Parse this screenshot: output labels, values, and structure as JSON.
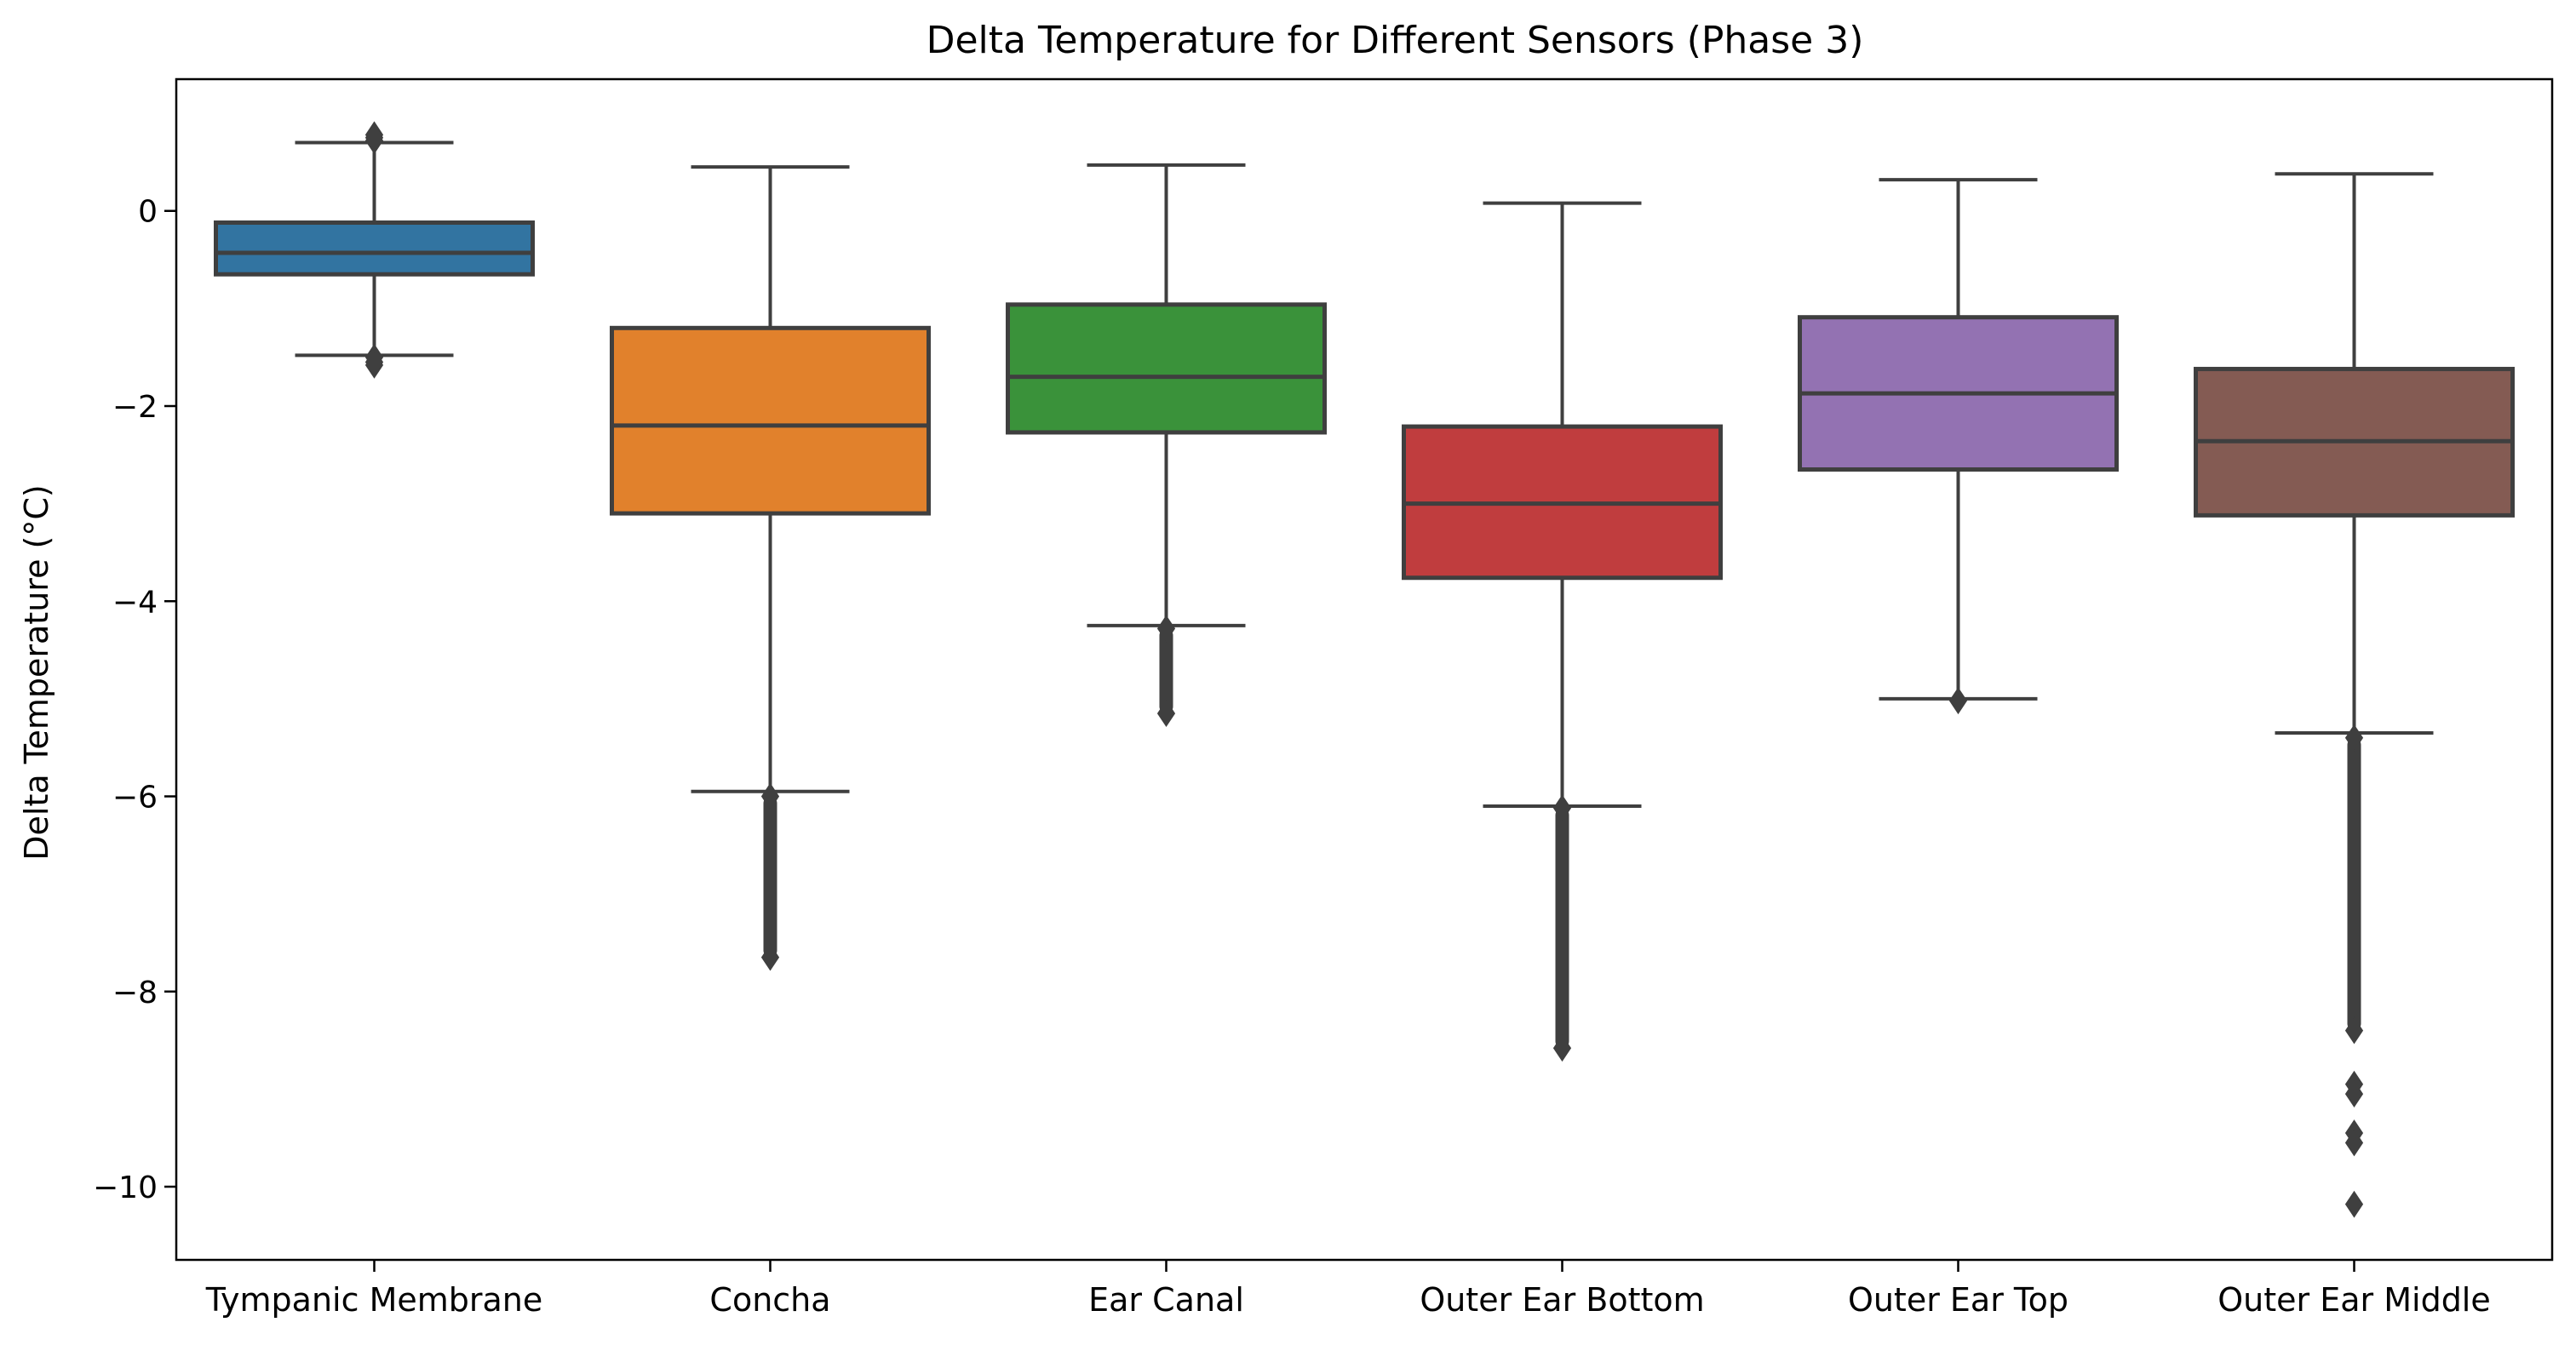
{
  "chart_data": {
    "type": "box",
    "title": "Delta Temperature for Different Sensors (Phase 3)",
    "xlabel": "",
    "ylabel": "Delta Temperature (°C)",
    "ylim": [
      -10.75,
      1.35
    ],
    "yticks": [
      0,
      -2,
      -4,
      -6,
      -8,
      -10
    ],
    "ytick_labels": [
      "0",
      "−2",
      "−4",
      "−6",
      "−8",
      "−10"
    ],
    "grid": false,
    "legend": "none",
    "categories": [
      "Tympanic Membrane",
      "Concha",
      "Ear Canal",
      "Outer Ear Bottom",
      "Outer Ear Top",
      "Outer Ear Middle"
    ],
    "boxes": [
      {
        "name": "Tympanic Membrane",
        "color": "#3274a1",
        "whisker_low": -1.48,
        "q1": -0.65,
        "median": -0.43,
        "q3": -0.12,
        "whisker_high": 0.7,
        "outliers": [
          0.78,
          0.75,
          0.72,
          -1.5,
          -1.55,
          -1.58
        ]
      },
      {
        "name": "Concha",
        "color": "#e1812c",
        "whisker_low": -5.95,
        "q1": -3.1,
        "median": -2.2,
        "q3": -1.2,
        "whisker_high": 0.45,
        "outlier_band": [
          -6.0,
          -7.65
        ],
        "outliers": []
      },
      {
        "name": "Ear Canal",
        "color": "#3a923a",
        "whisker_low": -4.25,
        "q1": -2.27,
        "median": -1.7,
        "q3": -0.96,
        "whisker_high": 0.47,
        "outlier_band": [
          -4.28,
          -5.15
        ],
        "outliers": []
      },
      {
        "name": "Outer Ear Bottom",
        "color": "#c03d3e",
        "whisker_low": -6.1,
        "q1": -3.76,
        "median": -3.0,
        "q3": -2.21,
        "whisker_high": 0.08,
        "outlier_band": [
          -6.12,
          -8.58
        ],
        "outliers": []
      },
      {
        "name": "Outer Ear Top",
        "color": "#9372b2",
        "whisker_low": -5.0,
        "q1": -2.65,
        "median": -1.87,
        "q3": -1.09,
        "whisker_high": 0.32,
        "outliers": [
          -5.02
        ]
      },
      {
        "name": "Outer Ear Middle",
        "color": "#845b53",
        "whisker_low": -5.35,
        "q1": -3.12,
        "median": -2.36,
        "q3": -1.62,
        "whisker_high": 0.38,
        "outlier_band": [
          -5.4,
          -8.4
        ],
        "outliers": [
          -8.95,
          -9.05,
          -9.45,
          -9.55,
          -10.18
        ]
      }
    ],
    "line_color": "#3f3f3f"
  }
}
